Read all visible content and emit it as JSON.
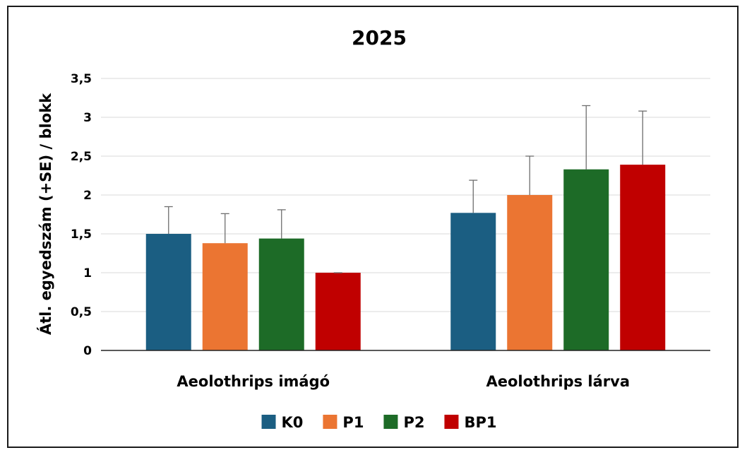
{
  "chart_data": {
    "type": "bar",
    "title": "2025",
    "ylabel": "Átl. egyedszám (+SE) / blokk",
    "xlabel": "",
    "ylim": [
      0,
      3.5
    ],
    "yticks": [
      0,
      0.5,
      1,
      1.5,
      2,
      2.5,
      3,
      3.5
    ],
    "ytick_labels": [
      "0",
      "0,5",
      "1",
      "1,5",
      "2",
      "2,5",
      "3",
      "3,5"
    ],
    "grid": true,
    "legend_position": "bottom",
    "categories": [
      "Aeolothrips imágó",
      "Aeolothrips lárva"
    ],
    "series": [
      {
        "name": "K0",
        "color": "#1b5e82",
        "values": [
          1.5,
          1.77
        ],
        "errors": [
          0.35,
          0.42
        ]
      },
      {
        "name": "P1",
        "color": "#eb7532",
        "values": [
          1.38,
          2.0
        ],
        "errors": [
          0.38,
          0.5
        ]
      },
      {
        "name": "P2",
        "color": "#1d6b27",
        "values": [
          1.44,
          2.33
        ],
        "errors": [
          0.37,
          0.82
        ]
      },
      {
        "name": "BP1",
        "color": "#c00000",
        "values": [
          1.0,
          2.39
        ],
        "errors": [
          0.0,
          0.69
        ]
      }
    ]
  }
}
